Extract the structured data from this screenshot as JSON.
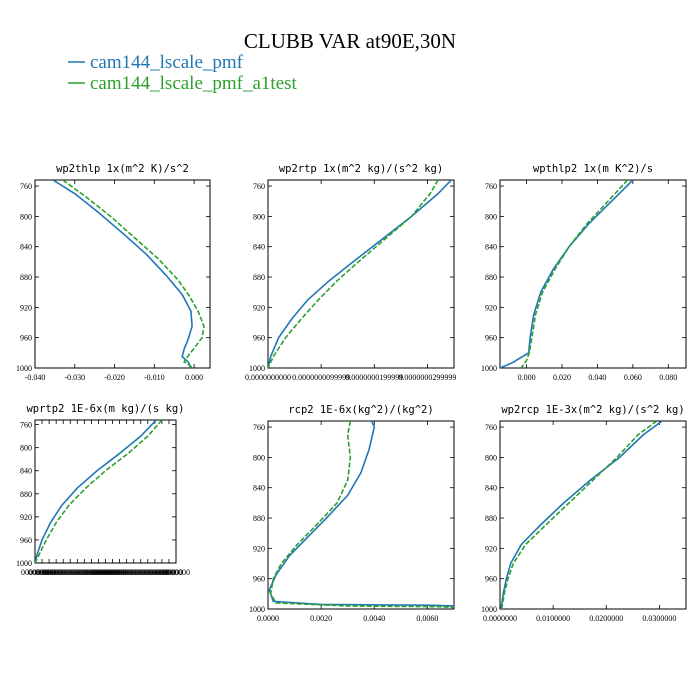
{
  "figure": {
    "title": "CLUBB VAR at90E,30N",
    "legend": [
      {
        "label": "cam144_lscale_pmf",
        "color": "#1f77b4"
      },
      {
        "label": "cam144_lscale_pmf_a1test",
        "color": "#2ca02c"
      }
    ]
  },
  "chart_data": [
    {
      "type": "line",
      "title": "wp2thlp  1x(m^2 K)/s^2",
      "xlim": [
        -0.04,
        0.004
      ],
      "ylim": [
        1000,
        752
      ],
      "yticks": [
        760,
        800,
        840,
        880,
        920,
        960,
        1000
      ],
      "xticks": [
        -0.04,
        -0.03,
        -0.02,
        -0.01,
        0.0
      ],
      "xticklabels": [
        "-0.040",
        "-0.030",
        "-0.020",
        "-0.010",
        "0.000"
      ],
      "series": [
        {
          "color": "#1f77b4",
          "points": [
            [
              -0.0355,
              752
            ],
            [
              -0.03,
              770
            ],
            [
              -0.024,
              795
            ],
            [
              -0.018,
              822
            ],
            [
              -0.012,
              850
            ],
            [
              -0.007,
              878
            ],
            [
              -0.003,
              903
            ],
            [
              -0.0008,
              925
            ],
            [
              -0.0005,
              945
            ],
            [
              -0.0015,
              962
            ],
            [
              -0.0025,
              975
            ],
            [
              -0.003,
              985
            ],
            [
              -0.0015,
              992
            ],
            [
              -0.001,
              997
            ],
            [
              -0.001,
              1000
            ]
          ]
        },
        {
          "color": "#2ca02c",
          "points": [
            [
              -0.033,
              752
            ],
            [
              -0.027,
              775
            ],
            [
              -0.021,
              800
            ],
            [
              -0.015,
              828
            ],
            [
              -0.009,
              856
            ],
            [
              -0.004,
              884
            ],
            [
              -0.0012,
              905
            ],
            [
              0.001,
              925
            ],
            [
              0.0025,
              945
            ],
            [
              0.002,
              960
            ],
            [
              0.0003,
              972
            ],
            [
              -0.0012,
              982
            ],
            [
              -0.0025,
              992
            ],
            [
              -0.001,
              997
            ],
            [
              -0.0005,
              1000
            ]
          ]
        }
      ]
    },
    {
      "type": "line",
      "title": "wp2rtp  1x(m^2 kg)/(s^2 kg)",
      "xlim": [
        0,
        3.5e-08
      ],
      "ylim": [
        1000,
        752
      ],
      "yticks": [
        760,
        800,
        840,
        880,
        920,
        960,
        1000
      ],
      "xticks": [
        0,
        1e-08,
        2e-08,
        3e-08
      ],
      "xticklabels": [
        "0.0000000000",
        "0.0000000099999",
        "0.0000000199999",
        "0.0000000299999"
      ],
      "series": [
        {
          "color": "#1f77b4",
          "points": [
            [
              3.45e-08,
              752
            ],
            [
              3.2e-08,
              770
            ],
            [
              2.7e-08,
              800
            ],
            [
              2.15e-08,
              830
            ],
            [
              1.6e-08,
              860
            ],
            [
              1.15e-08,
              885
            ],
            [
              7.5e-09,
              910
            ],
            [
              4.5e-09,
              935
            ],
            [
              2e-09,
              960
            ],
            [
              5e-10,
              985
            ],
            [
              0.0,
              1000
            ]
          ]
        },
        {
          "color": "#2ca02c",
          "points": [
            [
              3.2e-08,
              752
            ],
            [
              3.05e-08,
              770
            ],
            [
              2.7e-08,
              800
            ],
            [
              2.2e-08,
              830
            ],
            [
              1.7e-08,
              860
            ],
            [
              1.3e-08,
              885
            ],
            [
              9.5e-09,
              910
            ],
            [
              6.3e-09,
              935
            ],
            [
              3.3e-09,
              960
            ],
            [
              1e-09,
              985
            ],
            [
              0.0,
              1000
            ]
          ]
        }
      ]
    },
    {
      "type": "line",
      "title": "wpthlp2  1x(m K^2)/s",
      "xlim": [
        -0.015,
        0.09
      ],
      "ylim": [
        1000,
        752
      ],
      "yticks": [
        760,
        800,
        840,
        880,
        920,
        960,
        1000
      ],
      "xticks": [
        0.0,
        0.02,
        0.04,
        0.06,
        0.08
      ],
      "xticklabels": [
        "0.000",
        "0.020",
        "0.040",
        "0.060",
        "0.080"
      ],
      "series": [
        {
          "color": "#1f77b4",
          "points": [
            [
              0.06,
              752
            ],
            [
              0.048,
              780
            ],
            [
              0.035,
              810
            ],
            [
              0.024,
              840
            ],
            [
              0.015,
              870
            ],
            [
              0.008,
              900
            ],
            [
              0.004,
              930
            ],
            [
              0.002,
              960
            ],
            [
              0.0012,
              980
            ],
            [
              -0.008,
              993
            ],
            [
              -0.015,
              1000
            ]
          ]
        },
        {
          "color": "#2ca02c",
          "points": [
            [
              0.057,
              752
            ],
            [
              0.046,
              780
            ],
            [
              0.034,
              810
            ],
            [
              0.024,
              840
            ],
            [
              0.016,
              870
            ],
            [
              0.009,
              900
            ],
            [
              0.005,
              930
            ],
            [
              0.003,
              960
            ],
            [
              0.0015,
              980
            ],
            [
              0.0,
              990
            ],
            [
              -0.003,
              1000
            ]
          ]
        }
      ]
    },
    {
      "type": "line",
      "title": "wprtp2  1E-6x(m kg)/(s kg)",
      "xlim": [
        0,
        1
      ],
      "ylim": [
        1000,
        752
      ],
      "yticks": [
        760,
        800,
        840,
        880,
        920,
        960,
        1000
      ],
      "xticks": [
        0.0,
        0.05,
        0.1,
        0.15,
        0.2,
        0.25,
        0.3,
        0.35,
        0.4,
        0.45,
        0.5,
        0.55,
        0.6,
        0.65,
        0.7,
        0.75,
        0.8,
        0.85,
        0.9,
        0.95,
        1.0
      ],
      "xticklabels": [
        "0000000",
        "0000000",
        "0000000",
        "0000000",
        "0000000",
        "0000000",
        "0000000",
        "0000000",
        "0000000",
        "0000000",
        "0000000",
        "0000000",
        "0000000",
        "0000000",
        "0000000",
        "0000000",
        "0000000",
        "0000000",
        "0000000",
        "0000000",
        "0000000"
      ],
      "series": [
        {
          "color": "#1f77b4",
          "points": [
            [
              0.86,
              752
            ],
            [
              0.75,
              780
            ],
            [
              0.6,
              810
            ],
            [
              0.44,
              840
            ],
            [
              0.3,
              870
            ],
            [
              0.19,
              900
            ],
            [
              0.11,
              930
            ],
            [
              0.05,
              960
            ],
            [
              0.015,
              985
            ],
            [
              0.0,
              1000
            ]
          ]
        },
        {
          "color": "#2ca02c",
          "points": [
            [
              0.9,
              752
            ],
            [
              0.8,
              780
            ],
            [
              0.66,
              810
            ],
            [
              0.5,
              840
            ],
            [
              0.36,
              870
            ],
            [
              0.24,
              900
            ],
            [
              0.15,
              930
            ],
            [
              0.08,
              960
            ],
            [
              0.03,
              985
            ],
            [
              0.0,
              1000
            ]
          ]
        }
      ]
    },
    {
      "type": "line",
      "title": "rcp2  1E-6x(kg^2)/(kg^2)",
      "xlim": [
        0,
        0.007
      ],
      "ylim": [
        1000,
        752
      ],
      "yticks": [
        760,
        800,
        840,
        880,
        920,
        960,
        1000
      ],
      "xticks": [
        0.0,
        0.002,
        0.004,
        0.006
      ],
      "xticklabels": [
        "0.0000",
        "0.0020",
        "0.0040",
        "0.0060"
      ],
      "series": [
        {
          "color": "#1f77b4",
          "points": [
            [
              0.0039,
              752
            ],
            [
              0.004,
              760
            ],
            [
              0.0038,
              790
            ],
            [
              0.0035,
              820
            ],
            [
              0.003,
              850
            ],
            [
              0.0022,
              880
            ],
            [
              0.0015,
              905
            ],
            [
              0.0008,
              930
            ],
            [
              0.0003,
              955
            ],
            [
              5e-05,
              975
            ],
            [
              0.0002,
              990
            ],
            [
              0.002,
              994
            ],
            [
              0.006,
              995
            ],
            [
              0.007,
              996
            ]
          ]
        },
        {
          "color": "#2ca02c",
          "points": [
            [
              0.0031,
              752
            ],
            [
              0.003,
              770
            ],
            [
              0.0031,
              800
            ],
            [
              0.003,
              830
            ],
            [
              0.0026,
              860
            ],
            [
              0.0018,
              890
            ],
            [
              0.0011,
              915
            ],
            [
              0.0005,
              940
            ],
            [
              0.0002,
              960
            ],
            [
              0.0001,
              980
            ],
            [
              0.0003,
              992
            ],
            [
              0.003,
              996
            ],
            [
              0.0065,
              997
            ],
            [
              0.007,
              998
            ]
          ]
        }
      ]
    },
    {
      "type": "line",
      "title": "wp2rcp  1E-3x(m^2 kg)/(s^2 kg)",
      "xlim": [
        0,
        0.035
      ],
      "ylim": [
        1000,
        752
      ],
      "yticks": [
        760,
        800,
        840,
        880,
        920,
        960,
        1000
      ],
      "xticks": [
        0.0,
        0.01,
        0.02,
        0.03
      ],
      "xticklabels": [
        "0.0000000",
        "0.0100000",
        "0.0200000",
        "0.0300000"
      ],
      "series": [
        {
          "color": "#1f77b4",
          "points": [
            [
              0.0305,
              752
            ],
            [
              0.027,
              770
            ],
            [
              0.0225,
              800
            ],
            [
              0.017,
              830
            ],
            [
              0.012,
              860
            ],
            [
              0.0075,
              890
            ],
            [
              0.004,
              915
            ],
            [
              0.002,
              940
            ],
            [
              0.0012,
              960
            ],
            [
              0.0006,
              980
            ],
            [
              0.0002,
              1000
            ]
          ]
        },
        {
          "color": "#2ca02c",
          "points": [
            [
              0.0295,
              752
            ],
            [
              0.026,
              770
            ],
            [
              0.022,
              800
            ],
            [
              0.0175,
              830
            ],
            [
              0.013,
              860
            ],
            [
              0.0085,
              890
            ],
            [
              0.0048,
              915
            ],
            [
              0.0025,
              940
            ],
            [
              0.0015,
              960
            ],
            [
              0.0008,
              980
            ],
            [
              0.0003,
              1000
            ]
          ]
        }
      ]
    }
  ]
}
